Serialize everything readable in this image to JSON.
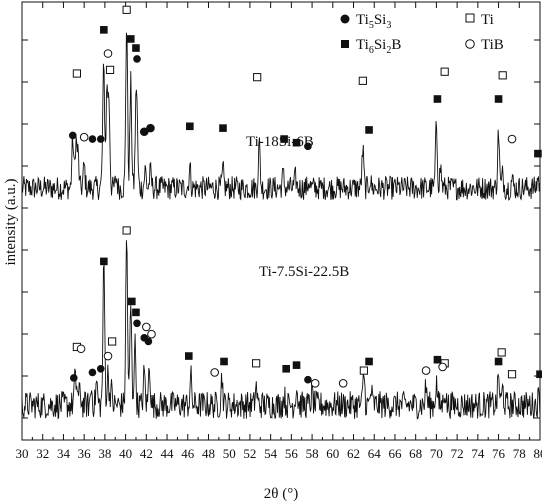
{
  "chart_data": {
    "type": "line",
    "xlabel": "2θ (°)",
    "ylabel": "intensity (a.u.)",
    "xlim": [
      30,
      80
    ],
    "xtick_step": 2,
    "yticks_labeled": false,
    "grid": false,
    "legend_position": "top-right",
    "legend": [
      {
        "marker": "filled-circle",
        "label": "Ti5Si3",
        "main": "Ti",
        "sub1": "5",
        "mid": "Si",
        "sub2": "3"
      },
      {
        "marker": "filled-square",
        "label": "Ti6Si2B",
        "main": "Ti",
        "sub1": "6",
        "mid": "Si",
        "sub2": "2",
        "tail": "B"
      },
      {
        "marker": "open-square",
        "label": "Ti"
      },
      {
        "marker": "open-circle",
        "label": "TiB"
      }
    ],
    "series": [
      {
        "name": "Ti-18Si-6B",
        "baseline": 17,
        "peaks": [
          [
            34.9,
            29
          ],
          [
            35.2,
            27
          ],
          [
            35.4,
            20
          ],
          [
            36.0,
            13
          ],
          [
            37.8,
            15
          ],
          [
            37.9,
            62
          ],
          [
            38.2,
            58
          ],
          [
            38.4,
            50
          ],
          [
            39.1,
            6
          ],
          [
            40.1,
            98
          ],
          [
            40.5,
            62
          ],
          [
            41.0,
            40
          ],
          [
            41.1,
            32
          ],
          [
            41.9,
            11
          ],
          [
            42.4,
            9
          ],
          [
            46.2,
            12
          ],
          [
            49.4,
            10
          ],
          [
            52.9,
            26
          ],
          [
            55.2,
            8
          ],
          [
            56.4,
            6
          ],
          [
            57.7,
            4
          ],
          [
            62.9,
            22
          ],
          [
            63.6,
            5
          ],
          [
            70.0,
            38
          ],
          [
            70.4,
            12
          ],
          [
            76.0,
            33
          ],
          [
            76.4,
            8
          ],
          [
            77.3,
            5
          ],
          [
            79.8,
            6
          ]
        ],
        "markers": [
          {
            "type": "open-square",
            "x": [
              35.3,
              38.5,
              40.1,
              52.7,
              62.9,
              70.8,
              76.4
            ]
          },
          {
            "type": "filled-square",
            "x": [
              37.9,
              40.5,
              41.0,
              46.2,
              49.4,
              55.3,
              56.5,
              63.5,
              70.1,
              76.0,
              79.8
            ]
          },
          {
            "type": "open-circle",
            "x": [
              36.0,
              38.3,
              41.8,
              42.4,
              77.3
            ]
          },
          {
            "type": "filled-circle",
            "x": [
              34.9,
              36.8,
              37.6,
              41.1,
              41.8,
              42.4,
              57.6
            ]
          }
        ],
        "marker_heights": [
          [
            35.3,
            0.64
          ],
          [
            38.5,
            0.66
          ],
          [
            40.1,
            0.99
          ],
          [
            52.7,
            0.62
          ],
          [
            62.9,
            0.6
          ],
          [
            70.8,
            0.65
          ],
          [
            76.4,
            0.63
          ],
          [
            37.9,
            0.88
          ],
          [
            40.5,
            0.83
          ],
          [
            41.0,
            0.78
          ],
          [
            46.2,
            0.35
          ],
          [
            49.4,
            0.34
          ],
          [
            55.3,
            0.28
          ],
          [
            56.5,
            0.26
          ],
          [
            63.5,
            0.33
          ],
          [
            70.1,
            0.5
          ],
          [
            76.0,
            0.5
          ],
          [
            79.8,
            0.2
          ],
          [
            36.0,
            0.29
          ],
          [
            38.3,
            0.75
          ],
          [
            41.8,
            0.24
          ],
          [
            42.4,
            0.25
          ],
          [
            77.3,
            0.28
          ],
          [
            34.9,
            0.3
          ],
          [
            36.8,
            0.28
          ],
          [
            37.6,
            0.28
          ],
          [
            41.1,
            0.72
          ],
          [
            41.8,
            0.32
          ],
          [
            42.4,
            0.34
          ],
          [
            57.6,
            0.24
          ]
        ]
      },
      {
        "name": "Ti-7.5Si-22.5B",
        "baseline": 12,
        "peaks": [
          [
            35.1,
            10
          ],
          [
            35.3,
            8
          ],
          [
            35.6,
            6
          ],
          [
            36.7,
            7
          ],
          [
            37.2,
            10
          ],
          [
            37.9,
            61
          ],
          [
            38.3,
            14
          ],
          [
            38.6,
            7
          ],
          [
            40.1,
            73
          ],
          [
            40.5,
            44
          ],
          [
            40.9,
            27
          ],
          [
            41.8,
            14
          ],
          [
            42.3,
            18
          ],
          [
            46.3,
            12
          ],
          [
            49.3,
            12
          ],
          [
            52.6,
            8
          ],
          [
            55.3,
            4
          ],
          [
            56.5,
            8
          ],
          [
            58.0,
            5
          ],
          [
            63.0,
            14
          ],
          [
            63.7,
            6
          ],
          [
            69.0,
            8
          ],
          [
            70.0,
            10
          ],
          [
            70.8,
            7
          ],
          [
            76.0,
            13
          ],
          [
            76.4,
            7
          ],
          [
            79.9,
            4
          ]
        ],
        "markers": [
          {
            "type": "open-square",
            "x": [
              35.3,
              38.7,
              40.1,
              52.6,
              63.0,
              70.8,
              76.3,
              77.3
            ]
          },
          {
            "type": "filled-square",
            "x": [
              37.9,
              40.6,
              41.0,
              46.1,
              49.5,
              55.5,
              56.5,
              63.5,
              70.1,
              76.0,
              80.0
            ]
          },
          {
            "type": "open-circle",
            "x": [
              35.7,
              38.3,
              42.0,
              42.5,
              48.6,
              58.3,
              61.0,
              69.0,
              70.6
            ]
          },
          {
            "type": "filled-circle",
            "x": [
              35.0,
              36.8,
              37.6,
              41.1,
              41.8,
              42.2,
              57.6
            ]
          }
        ],
        "marker_heights": [
          [
            35.3,
            0.33
          ],
          [
            38.7,
            0.36
          ],
          [
            40.1,
            0.97
          ],
          [
            52.6,
            0.24
          ],
          [
            63.0,
            0.2
          ],
          [
            70.8,
            0.24
          ],
          [
            76.3,
            0.3
          ],
          [
            77.3,
            0.18
          ],
          [
            37.9,
            0.8
          ],
          [
            40.6,
            0.58
          ],
          [
            41.0,
            0.52
          ],
          [
            46.1,
            0.28
          ],
          [
            49.5,
            0.25
          ],
          [
            55.5,
            0.21
          ],
          [
            56.5,
            0.23
          ],
          [
            63.5,
            0.25
          ],
          [
            70.1,
            0.26
          ],
          [
            76.0,
            0.25
          ],
          [
            80.0,
            0.18
          ],
          [
            35.7,
            0.32
          ],
          [
            38.3,
            0.28
          ],
          [
            42.0,
            0.44
          ],
          [
            42.5,
            0.4
          ],
          [
            48.6,
            0.19
          ],
          [
            58.3,
            0.13
          ],
          [
            61.0,
            0.13
          ],
          [
            69.0,
            0.2
          ],
          [
            70.6,
            0.22
          ],
          [
            35.0,
            0.16
          ],
          [
            36.8,
            0.19
          ],
          [
            37.6,
            0.21
          ],
          [
            41.1,
            0.46
          ],
          [
            41.8,
            0.38
          ],
          [
            42.2,
            0.36
          ],
          [
            57.6,
            0.15
          ]
        ]
      }
    ]
  }
}
